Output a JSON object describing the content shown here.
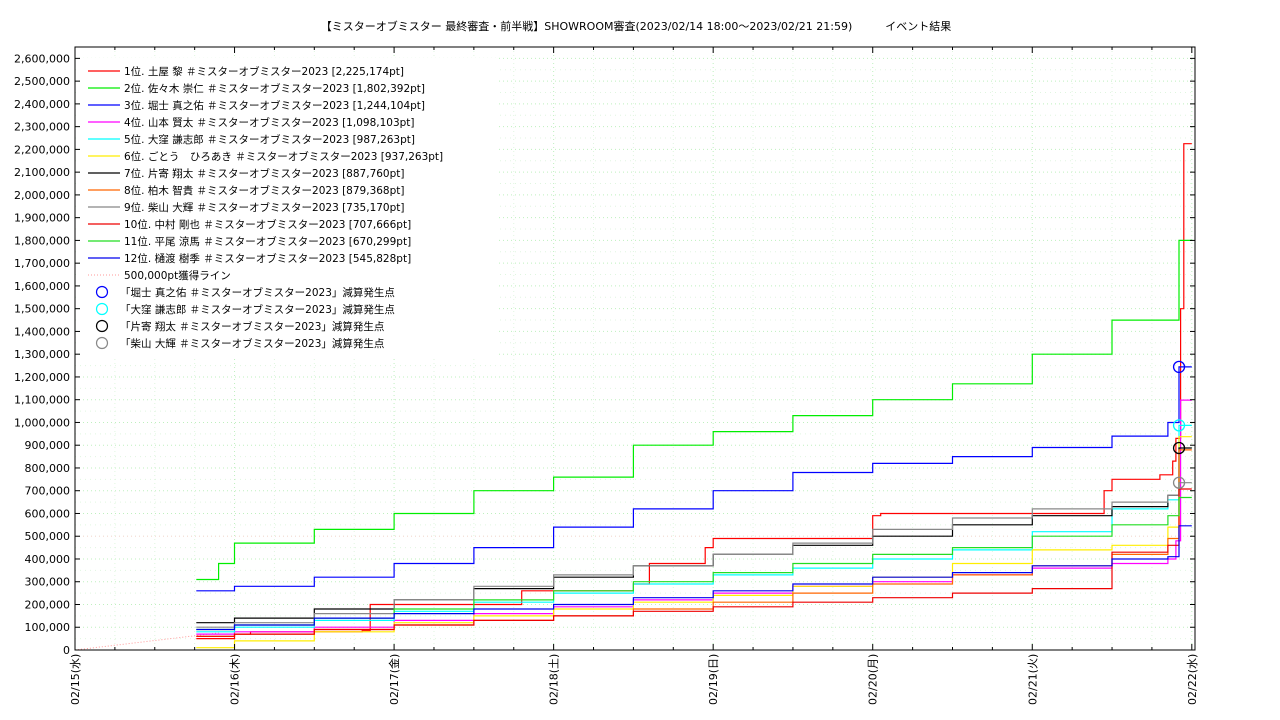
{
  "chart_data": {
    "type": "line",
    "title": "【ミスターオブミスター 最終審査・前半戦】SHOWROOM審査(2023/02/14 18:00～2023/02/21 21:59)　　　イベント結果",
    "xlabel": "",
    "ylabel": "",
    "x_tick_labels": [
      "02/15(水)",
      "02/16(木)",
      "02/17(金)",
      "02/18(土)",
      "02/19(日)",
      "02/20(月)",
      "02/21(火)",
      "02/22(水)"
    ],
    "xlim": [
      0,
      7.02
    ],
    "ylim": [
      0,
      2650000
    ],
    "y_ticks": [
      0,
      100000,
      200000,
      300000,
      400000,
      500000,
      600000,
      700000,
      800000,
      900000,
      1000000,
      1100000,
      1200000,
      1300000,
      1400000,
      1500000,
      1600000,
      1700000,
      1800000,
      1900000,
      2000000,
      2100000,
      2200000,
      2300000,
      2400000,
      2500000,
      2600000
    ],
    "y_tick_labels": [
      "0",
      "100,000",
      "200,000",
      "300,000",
      "400,000",
      "500,000",
      "600,000",
      "700,000",
      "800,000",
      "900,000",
      "1,000,000",
      "1,100,000",
      "1,200,000",
      "1,300,000",
      "1,400,000",
      "1,500,000",
      "1,600,000",
      "1,700,000",
      "1,800,000",
      "1,900,000",
      "2,000,000",
      "2,100,000",
      "2,200,000",
      "2,300,000",
      "2,400,000",
      "2,500,000",
      "2,600,000"
    ],
    "grid": true,
    "legend_position": "top-left",
    "series": [
      {
        "name": "1位. 土屋 黎 ＃ミスターオブミスター2023 [2,225,174pt]",
        "color": "#ff0000",
        "x": [
          0.76,
          1.0,
          1.1,
          1.8,
          1.85,
          2.08,
          2.8,
          3.5,
          3.6,
          3.95,
          4.0,
          5.0,
          5.05,
          6.45,
          6.5,
          6.8,
          6.88,
          6.9,
          6.93,
          6.95,
          7.0
        ],
        "values": [
          50000,
          70000,
          80000,
          85000,
          200000,
          200000,
          260000,
          290000,
          380000,
          450000,
          490000,
          590000,
          600000,
          700000,
          750000,
          770000,
          830000,
          930000,
          1500000,
          2225174,
          2225174
        ]
      },
      {
        "name": "2位. 佐々木 崇仁 ＃ミスターオブミスター2023 [1,802,392pt]",
        "color": "#00ee00",
        "x": [
          0.76,
          0.9,
          1.0,
          1.5,
          2.0,
          2.5,
          3.0,
          3.5,
          4.0,
          4.5,
          5.0,
          5.5,
          6.0,
          6.5,
          6.92,
          7.0
        ],
        "values": [
          310000,
          380000,
          470000,
          530000,
          600000,
          700000,
          760000,
          900000,
          960000,
          1030000,
          1100000,
          1170000,
          1300000,
          1450000,
          1800000,
          1802392
        ]
      },
      {
        "name": "3位. 堀士 真之佑 ＃ミスターオブミスター2023 [1,244,104pt]",
        "color": "#0000ff",
        "x": [
          0.76,
          1.0,
          1.5,
          2.0,
          2.5,
          3.0,
          3.5,
          4.0,
          4.5,
          5.0,
          5.5,
          6.0,
          6.5,
          6.85,
          6.92,
          7.0
        ],
        "values": [
          260000,
          280000,
          320000,
          380000,
          450000,
          540000,
          620000,
          700000,
          780000,
          820000,
          850000,
          890000,
          940000,
          1000000,
          1244104,
          1244104
        ]
      },
      {
        "name": "4位. 山本 賢太 ＃ミスターオブミスター2023 [1,098,103pt]",
        "color": "#ff00ff",
        "x": [
          0.76,
          1.0,
          1.5,
          2.0,
          2.5,
          3.0,
          3.5,
          4.0,
          4.5,
          5.0,
          5.5,
          6.0,
          6.5,
          6.85,
          6.9,
          6.93,
          7.0
        ],
        "values": [
          70000,
          80000,
          100000,
          130000,
          160000,
          190000,
          220000,
          250000,
          280000,
          300000,
          330000,
          360000,
          380000,
          400000,
          480000,
          1098103,
          1098103
        ]
      },
      {
        "name": "5位. 大窪 謙志郎 ＃ミスターオブミスター2023 [987,263pt]",
        "color": "#00ffff",
        "x": [
          0.76,
          1.0,
          1.5,
          2.0,
          2.5,
          3.0,
          3.5,
          4.0,
          4.5,
          5.0,
          5.5,
          6.0,
          6.5,
          6.85,
          6.92,
          7.0
        ],
        "values": [
          80000,
          100000,
          130000,
          170000,
          210000,
          250000,
          290000,
          330000,
          360000,
          400000,
          440000,
          520000,
          620000,
          660000,
          987263,
          987263
        ]
      },
      {
        "name": "6位. ごとう　ひろあき ＃ミスターオブミスター2023 [937,263pt]",
        "color": "#ffee00",
        "x": [
          0.76,
          1.0,
          1.5,
          2.0,
          2.5,
          3.0,
          3.5,
          4.0,
          4.5,
          5.0,
          5.5,
          6.0,
          6.5,
          6.85,
          6.92,
          7.0
        ],
        "values": [
          10000,
          40000,
          80000,
          120000,
          150000,
          180000,
          210000,
          240000,
          280000,
          320000,
          380000,
          440000,
          460000,
          540000,
          937263,
          937263
        ]
      },
      {
        "name": "7位. 片寄 翔太 ＃ミスターオブミスター2023 [887,760pt]",
        "color": "#000000",
        "x": [
          0.76,
          1.0,
          1.5,
          2.0,
          2.5,
          3.0,
          3.5,
          4.0,
          4.5,
          5.0,
          5.5,
          6.0,
          6.5,
          6.85,
          6.92,
          7.0
        ],
        "values": [
          120000,
          140000,
          180000,
          220000,
          270000,
          320000,
          370000,
          420000,
          460000,
          500000,
          550000,
          590000,
          630000,
          680000,
          887760,
          887760
        ]
      },
      {
        "name": "8位. 柏木 智貴 ＃ミスターオブミスター2023 [879,368pt]",
        "color": "#ff6600",
        "x": [
          0.76,
          1.0,
          1.5,
          2.0,
          2.5,
          3.0,
          3.5,
          4.0,
          4.5,
          5.0,
          5.5,
          6.0,
          6.5,
          6.85,
          6.92,
          7.0
        ],
        "values": [
          60000,
          70000,
          90000,
          110000,
          130000,
          150000,
          180000,
          210000,
          250000,
          290000,
          330000,
          370000,
          420000,
          490000,
          879368,
          879368
        ]
      },
      {
        "name": "9位. 柴山 大輝 ＃ミスターオブミスター2023 [735,170pt]",
        "color": "#888888",
        "x": [
          0.76,
          1.0,
          1.5,
          2.0,
          2.5,
          3.0,
          3.5,
          4.0,
          4.5,
          5.0,
          5.5,
          6.0,
          6.5,
          6.85,
          6.92,
          7.0
        ],
        "values": [
          100000,
          120000,
          160000,
          220000,
          280000,
          330000,
          370000,
          420000,
          470000,
          530000,
          580000,
          620000,
          650000,
          680000,
          735170,
          735170
        ]
      },
      {
        "name": "10位. 中村 剛也 ＃ミスターオブミスター2023 [707,666pt]",
        "color": "#ee0000",
        "x": [
          0.76,
          1.0,
          1.5,
          2.0,
          2.5,
          3.0,
          3.5,
          4.0,
          4.5,
          5.0,
          5.5,
          6.0,
          6.5,
          6.85,
          6.92,
          7.0
        ],
        "values": [
          60000,
          70000,
          90000,
          110000,
          130000,
          150000,
          170000,
          190000,
          210000,
          230000,
          250000,
          270000,
          430000,
          460000,
          707666,
          707666
        ]
      },
      {
        "name": "11位. 平尾 涼馬 ＃ミスターオブミスター2023 [670,299pt]",
        "color": "#22dd22",
        "x": [
          0.76,
          1.0,
          1.5,
          2.0,
          2.5,
          3.0,
          3.5,
          4.0,
          4.5,
          5.0,
          5.5,
          6.0,
          6.5,
          6.85,
          6.92,
          7.0
        ],
        "values": [
          90000,
          110000,
          140000,
          180000,
          220000,
          260000,
          300000,
          340000,
          380000,
          420000,
          450000,
          500000,
          550000,
          590000,
          670299,
          670299
        ]
      },
      {
        "name": "12位. 樋渡 樹季 ＃ミスターオブミスター2023 [545,828pt]",
        "color": "#0000ee",
        "x": [
          0.76,
          1.0,
          1.5,
          2.0,
          2.5,
          3.0,
          3.5,
          4.0,
          4.5,
          5.0,
          5.5,
          6.0,
          6.5,
          6.85,
          6.92,
          7.0
        ],
        "values": [
          90000,
          110000,
          140000,
          160000,
          180000,
          200000,
          230000,
          260000,
          290000,
          320000,
          340000,
          370000,
          400000,
          410000,
          545828,
          545828
        ]
      }
    ],
    "reference_line": {
      "name": "500,000pt獲得ライン",
      "color": "#ff9999",
      "values": [
        500000
      ]
    },
    "deduction_markers": [
      {
        "name": "「堀士 真之佑 ＃ミスターオブミスター2023」減算発生点",
        "color": "#0000ff",
        "x": 6.92,
        "value": 1244104
      },
      {
        "name": "「大窪 謙志郎 ＃ミスターオブミスター2023」減算発生点",
        "color": "#00ffff",
        "x": 6.92,
        "value": 987263
      },
      {
        "name": "「片寄 翔太 ＃ミスターオブミスター2023」減算発生点",
        "color": "#000000",
        "x": 6.92,
        "value": 887760
      },
      {
        "name": "「柴山 大輝 ＃ミスターオブミスター2023」減算発生点",
        "color": "#888888",
        "x": 6.92,
        "value": 735170
      }
    ]
  }
}
